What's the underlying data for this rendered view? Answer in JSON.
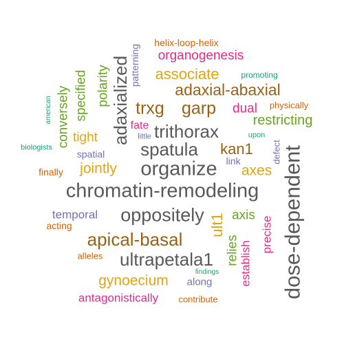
{
  "words": [
    {
      "text": "chromatin-remodeling",
      "color": "#595959"
    },
    {
      "text": "dose-dependent",
      "color": "#595959"
    },
    {
      "text": "organize",
      "color": "#595959"
    },
    {
      "text": "oppositely",
      "color": "#595959"
    },
    {
      "text": "spatula",
      "color": "#595959"
    },
    {
      "text": "trithorax",
      "color": "#595959"
    },
    {
      "text": "ultrapetala1",
      "color": "#595959"
    },
    {
      "text": "adaxialized",
      "color": "#595959"
    },
    {
      "text": "apical-basal",
      "color": "#9a6114"
    },
    {
      "text": "adaxial-abaxial",
      "color": "#9a6114"
    },
    {
      "text": "trxg",
      "color": "#9a6114"
    },
    {
      "text": "garp",
      "color": "#9a6114"
    },
    {
      "text": "kan1",
      "color": "#9a6114"
    },
    {
      "text": "associate",
      "color": "#e0a511"
    },
    {
      "text": "jointly",
      "color": "#e0a511"
    },
    {
      "text": "axes",
      "color": "#e0a511"
    },
    {
      "text": "tight",
      "color": "#e0a511"
    },
    {
      "text": "gynoecium",
      "color": "#e0a511"
    },
    {
      "text": "ult1",
      "color": "#e0a511"
    },
    {
      "text": "restricting",
      "color": "#66a61e"
    },
    {
      "text": "specified",
      "color": "#66a61e"
    },
    {
      "text": "conversely",
      "color": "#66a61e"
    },
    {
      "text": "polarity",
      "color": "#66a61e"
    },
    {
      "text": "axis",
      "color": "#66a61e"
    },
    {
      "text": "relies",
      "color": "#66a61e"
    },
    {
      "text": "organogenesis",
      "color": "#e7298a"
    },
    {
      "text": "dual",
      "color": "#e7298a"
    },
    {
      "text": "fate",
      "color": "#e7298a"
    },
    {
      "text": "precise",
      "color": "#e7298a"
    },
    {
      "text": "establish",
      "color": "#e7298a"
    },
    {
      "text": "antagonistically",
      "color": "#e7298a"
    },
    {
      "text": "temporal",
      "color": "#7570b3"
    },
    {
      "text": "spatial",
      "color": "#7570b3"
    },
    {
      "text": "link",
      "color": "#7570b3"
    },
    {
      "text": "along",
      "color": "#7570b3"
    },
    {
      "text": "patterning",
      "color": "#7570b3"
    },
    {
      "text": "defect",
      "color": "#7570b3"
    },
    {
      "text": "little",
      "color": "#7570b3"
    },
    {
      "text": "helix-loop-helix",
      "color": "#d95f02"
    },
    {
      "text": "physically",
      "color": "#d95f02"
    },
    {
      "text": "finally",
      "color": "#d95f02"
    },
    {
      "text": "acting",
      "color": "#d95f02"
    },
    {
      "text": "alleles",
      "color": "#d95f02"
    },
    {
      "text": "contribute",
      "color": "#d95f02"
    },
    {
      "text": "promoting",
      "color": "#1b9e77"
    },
    {
      "text": "american",
      "color": "#1b9e77"
    },
    {
      "text": "biologists",
      "color": "#1b9e77"
    },
    {
      "text": "upon",
      "color": "#1b9e77"
    },
    {
      "text": "findings",
      "color": "#1b9e77"
    }
  ]
}
